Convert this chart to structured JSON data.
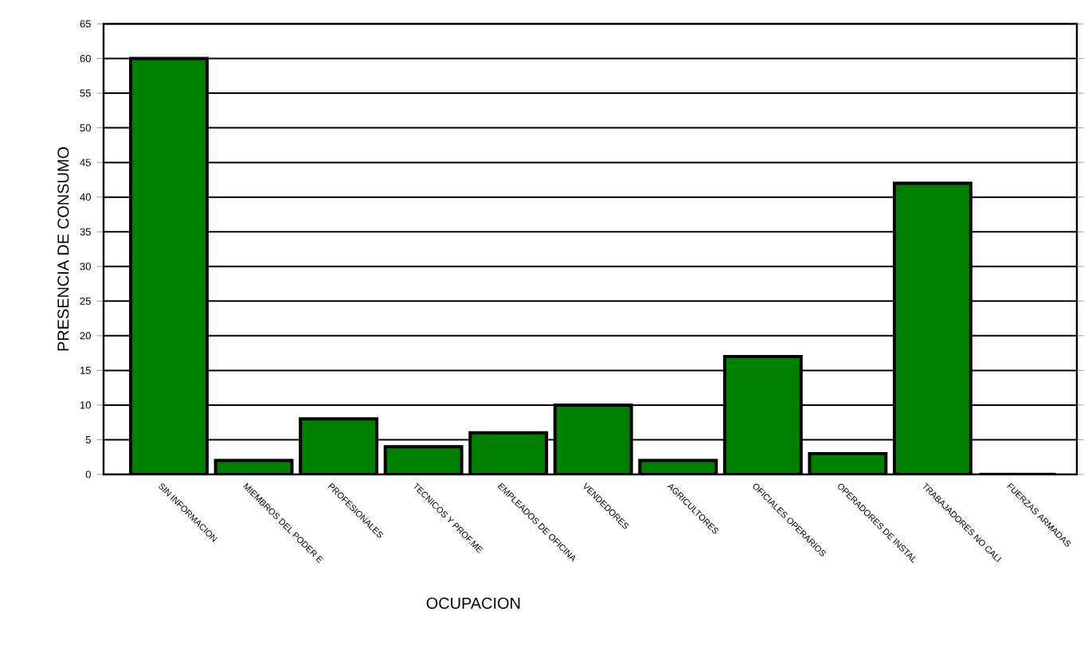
{
  "chart_data": {
    "type": "bar",
    "xlabel": "OCUPACION",
    "ylabel": "PRESENCIA DE CONSUMO",
    "categories": [
      "SIN INFORMACION",
      "MIEMBROS DEL PODER E",
      "PROFESIONALES",
      "TECNICOS Y PROF.ME",
      "EMPLEADOS DE OFICINA",
      "VENDEDORES",
      "AGRICULTORES",
      "OFICIALES OPERARIOS",
      "OPERADORES DE INSTAL",
      "TRABAJADORES NO CALI",
      "FUERZAS ARMADAS"
    ],
    "values": [
      60,
      2,
      8,
      4,
      6,
      10,
      2,
      17,
      3,
      42,
      0
    ],
    "color": "#008000",
    "ylim": [
      0,
      65
    ],
    "yticks": [
      0,
      5,
      10,
      15,
      20,
      25,
      30,
      35,
      40,
      45,
      50,
      55,
      60,
      65
    ],
    "grid": "y"
  }
}
